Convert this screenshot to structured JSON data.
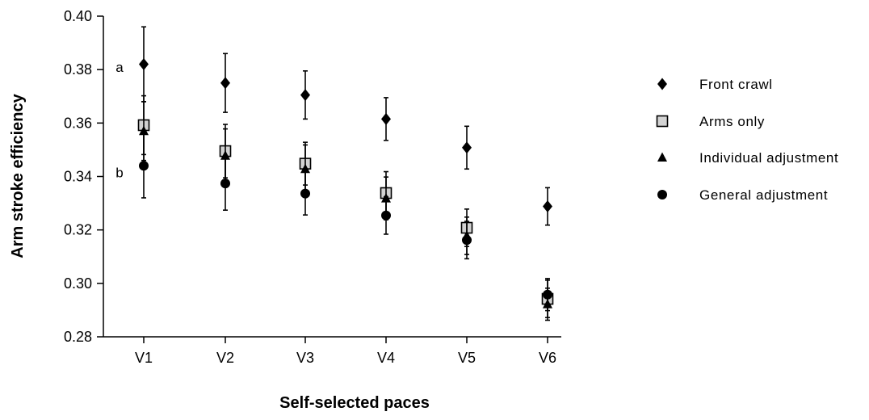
{
  "chart_data": {
    "type": "scatter",
    "title": "",
    "xlabel": "Self-selected paces",
    "ylabel": "Arm stroke efficiency",
    "categories": [
      "V1",
      "V2",
      "V3",
      "V4",
      "V5",
      "V6"
    ],
    "ylim": [
      0.28,
      0.4
    ],
    "yticks": [
      "0.28",
      "0.30",
      "0.32",
      "0.34",
      "0.36",
      "0.38",
      "0.40"
    ],
    "grid": false,
    "legend_position": "right",
    "series": [
      {
        "name": "Front crawl",
        "marker": "diamond",
        "color": "#000000",
        "values": [
          0.382,
          0.375,
          0.3705,
          0.3615,
          0.3508,
          0.3288
        ],
        "errors": [
          0.014,
          0.011,
          0.009,
          0.008,
          0.008,
          0.007
        ]
      },
      {
        "name": "Arms only",
        "marker": "square",
        "color": "#d3d3d3",
        "values": [
          0.3592,
          0.3495,
          0.3448,
          0.3338,
          0.3208,
          0.2942
        ],
        "errors": [
          0.011,
          0.01,
          0.008,
          0.008,
          0.007,
          0.007
        ]
      },
      {
        "name": "Individual adjustment",
        "marker": "triangle",
        "color": "#000000",
        "values": [
          0.357,
          0.3478,
          0.3428,
          0.3318,
          0.3178,
          0.2922
        ],
        "errors": [
          0.011,
          0.01,
          0.009,
          0.008,
          0.007,
          0.006
        ]
      },
      {
        "name": "General adjustment",
        "marker": "circle",
        "color": "#000000",
        "values": [
          0.344,
          0.3374,
          0.3336,
          0.3254,
          0.3162,
          0.2958
        ],
        "errors": [
          0.012,
          0.01,
          0.008,
          0.007,
          0.007,
          0.006
        ]
      }
    ],
    "annotations": [
      {
        "text": "a",
        "category": "V1",
        "y": 0.381
      },
      {
        "text": "b",
        "category": "V1",
        "y": 0.3415
      }
    ]
  }
}
